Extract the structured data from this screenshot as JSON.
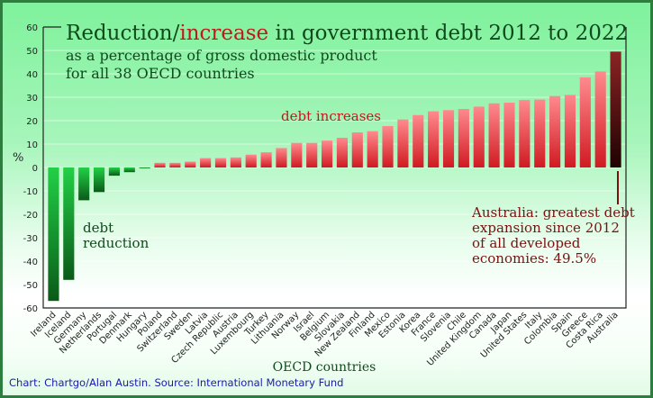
{
  "chart_data": {
    "type": "bar",
    "title_part1": "Reduction/",
    "title_highlight": "increase",
    "title_part2": " in government debt 2012 to 2022",
    "subtitle_line1": "as a percentage of gross domestic product",
    "subtitle_line2": "for all 38 OECD countries",
    "xlabel": "OECD countries",
    "ylabel": "%",
    "ylim": [
      -60,
      60
    ],
    "yticks": [
      60,
      50,
      40,
      30,
      20,
      10,
      0,
      -10,
      -20,
      -30,
      -40,
      -50,
      -60
    ],
    "grid": true,
    "categories": [
      "Ireland",
      "Iceland",
      "Germany",
      "Netherlands",
      "Portugal",
      "Denmark",
      "Hungary",
      "Poland",
      "Switzerland",
      "Sweden",
      "Latvia",
      "Czech Republic",
      "Austria",
      "Luxembourg",
      "Turkey",
      "Lithuania",
      "Norway",
      "Israel",
      "Belgium",
      "Slovakia",
      "New Zealand",
      "Finland",
      "Mexico",
      "Estonia",
      "Korea",
      "France",
      "Slovenia",
      "Chile",
      "United Kingdom",
      "Canada",
      "Japan",
      "United States",
      "Italy",
      "Colombia",
      "Spain",
      "Greece",
      "Costa Rica",
      "Australia"
    ],
    "values": [
      -57,
      -48,
      -14,
      -10.5,
      -3.5,
      -2,
      -0.3,
      2,
      2,
      2.5,
      4,
      4,
      4.3,
      5.5,
      6.5,
      8.3,
      10.5,
      10.5,
      11.5,
      12.7,
      15,
      15.5,
      17.7,
      20.5,
      22.4,
      24,
      24.5,
      25,
      26,
      27.4,
      27.7,
      28.8,
      29,
      30.5,
      31,
      38.5,
      41,
      49.5
    ],
    "annotations": {
      "increase": "debt increases",
      "reduction_line1": "debt",
      "reduction_line2": "reduction",
      "australia_lines": [
        "Australia: greatest debt",
        "expansion since 2012",
        "of all developed",
        "economies: 49.5%"
      ]
    },
    "colors": {
      "negative": "#1bb83a",
      "increase": "#e3343e",
      "highlight": "#5a0d0d",
      "title": "#0f4a1c",
      "title_highlight": "#c0181c"
    }
  },
  "credit": "Chart: Chartgo/Alan Austin. Source: International Monetary Fund"
}
